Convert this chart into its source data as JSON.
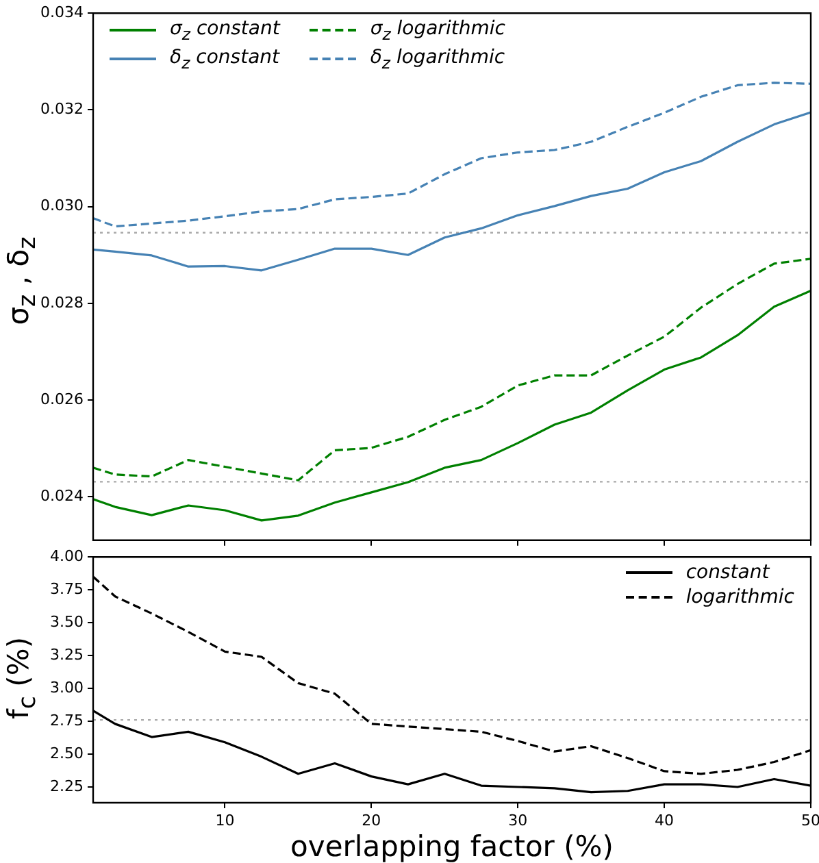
{
  "chart_data": [
    {
      "type": "line",
      "ylabel": "σ$_{z}$ , δ$_{z}$",
      "x": [
        1,
        2.5,
        5,
        7.5,
        10,
        12.5,
        15,
        17.5,
        20,
        22.5,
        25,
        27.5,
        30,
        32.5,
        35,
        37.5,
        40,
        42.5,
        45,
        47.5,
        50
      ],
      "series": [
        {
          "name": "σ$_{z}$ constant",
          "color": "#008000",
          "line_style": "solid",
          "values": [
            0.02395,
            0.02379,
            0.02362,
            0.02382,
            0.02372,
            0.02351,
            0.02361,
            0.02388,
            0.02409,
            0.0243,
            0.0246,
            0.02476,
            0.02511,
            0.02549,
            0.02574,
            0.0262,
            0.02663,
            0.02688,
            0.02734,
            0.02793,
            0.02826
          ]
        },
        {
          "name": "δ$_{z}$ constant",
          "color": "#4682b4",
          "line_style": "solid",
          "values": [
            0.02911,
            0.02907,
            0.02899,
            0.02876,
            0.02877,
            0.02868,
            0.0289,
            0.02913,
            0.02913,
            0.029,
            0.02936,
            0.02955,
            0.02982,
            0.03001,
            0.03022,
            0.03037,
            0.03071,
            0.03094,
            0.03134,
            0.0317,
            0.03195
          ]
        },
        {
          "name": "σ$_{z}$ logarithmic",
          "color": "#008000",
          "line_style": "dashed",
          "values": [
            0.0246,
            0.02446,
            0.02442,
            0.02476,
            0.02462,
            0.02448,
            0.02434,
            0.02496,
            0.02501,
            0.02524,
            0.02559,
            0.02586,
            0.0263,
            0.02651,
            0.02651,
            0.02692,
            0.02731,
            0.02791,
            0.0284,
            0.02882,
            0.02892
          ]
        },
        {
          "name": "δ$_{z}$ logarithmic",
          "color": "#4682b4",
          "line_style": "dashed",
          "values": [
            0.02976,
            0.02959,
            0.02965,
            0.02971,
            0.0298,
            0.0299,
            0.02995,
            0.03015,
            0.0302,
            0.03027,
            0.03067,
            0.031,
            0.03112,
            0.03117,
            0.03134,
            0.03165,
            0.03194,
            0.03227,
            0.03251,
            0.03256,
            0.03254
          ]
        }
      ],
      "xlim": [
        1,
        50
      ],
      "xticks": [
        10,
        20,
        30,
        40,
        50
      ],
      "ylim": [
        0.0231,
        0.034
      ],
      "yticks": [
        0.024,
        0.026,
        0.028,
        {
          "value": 0.03,
          "label": "0.030"
        },
        0.032,
        0.034
      ],
      "tick_labels": "y",
      "legend": "top left",
      "grid": false,
      "ref_lines": [
        {
          "axis": "y",
          "value": 0.02946,
          "color": "#aaaaaa",
          "line_style": "dotted"
        },
        {
          "axis": "y",
          "value": 0.02431,
          "color": "#aaaaaa",
          "line_style": "dotted"
        }
      ]
    },
    {
      "type": "line",
      "xlabel": "overlapping factor (%)",
      "ylabel": "f$_{c}$ (%)",
      "x": [
        1,
        2.5,
        5,
        7.5,
        10,
        12.5,
        15,
        17.5,
        20,
        22.5,
        25,
        27.5,
        30,
        32.5,
        35,
        37.5,
        40,
        42.5,
        45,
        47.5,
        50
      ],
      "series": [
        {
          "name": "constant",
          "color": "#000000",
          "line_style": "solid",
          "values": [
            2.83,
            2.73,
            2.63,
            2.67,
            2.59,
            2.48,
            2.35,
            2.43,
            2.33,
            2.27,
            2.35,
            2.26,
            2.25,
            2.24,
            2.21,
            2.22,
            2.27,
            2.27,
            2.25,
            2.31,
            2.26
          ]
        },
        {
          "name": "logarithmic",
          "color": "#000000",
          "line_style": "dashed",
          "values": [
            3.85,
            3.7,
            3.57,
            3.43,
            3.28,
            3.24,
            3.04,
            2.96,
            2.73,
            2.71,
            2.69,
            2.67,
            2.6,
            2.52,
            2.56,
            2.47,
            2.37,
            2.35,
            2.38,
            2.44,
            2.53
          ]
        }
      ],
      "xlim": [
        1,
        50
      ],
      "xticks": [
        10,
        20,
        30,
        40,
        50
      ],
      "ylim": [
        2.13,
        4.0
      ],
      "yticks": [
        {
          "value": 2.25,
          "label": "2.25"
        },
        {
          "value": 2.5,
          "label": "2.50"
        },
        {
          "value": 2.75,
          "label": "2.75"
        },
        {
          "value": 3,
          "label": "3.00"
        },
        {
          "value": 3.25,
          "label": "3.25"
        },
        {
          "value": 3.5,
          "label": "3.50"
        },
        {
          "value": 3.75,
          "label": "3.75"
        },
        {
          "value": 4,
          "label": "4.00"
        }
      ],
      "legend": "top right",
      "grid": false,
      "ref_lines": [
        {
          "axis": "y",
          "value": 2.76,
          "color": "#aaaaaa",
          "line_style": "dotted"
        }
      ]
    }
  ]
}
